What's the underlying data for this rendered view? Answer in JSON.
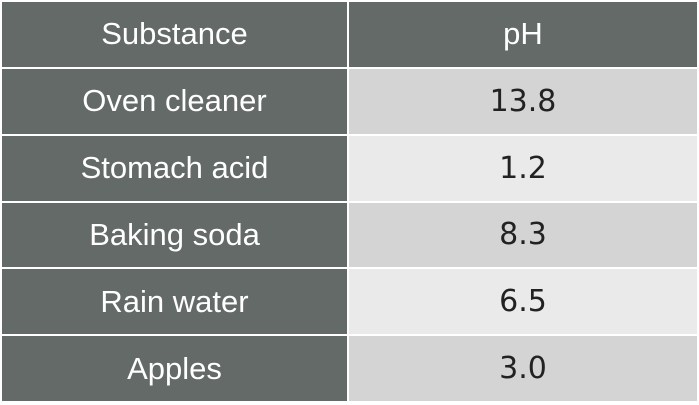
{
  "table": {
    "headers": [
      "Substance",
      "pH"
    ],
    "rows": [
      {
        "substance": "Oven cleaner",
        "ph": "13.8"
      },
      {
        "substance": "Stomach acid",
        "ph": "1.2"
      },
      {
        "substance": "Baking soda",
        "ph": "8.3"
      },
      {
        "substance": "Rain water",
        "ph": "6.5"
      },
      {
        "substance": "Apples",
        "ph": "3.0"
      }
    ]
  },
  "colors": {
    "header_bg": "#646a68",
    "label_bg": "#646a68",
    "value_bg_odd": "#d3d4d3",
    "value_bg_even": "#e9eae9"
  }
}
